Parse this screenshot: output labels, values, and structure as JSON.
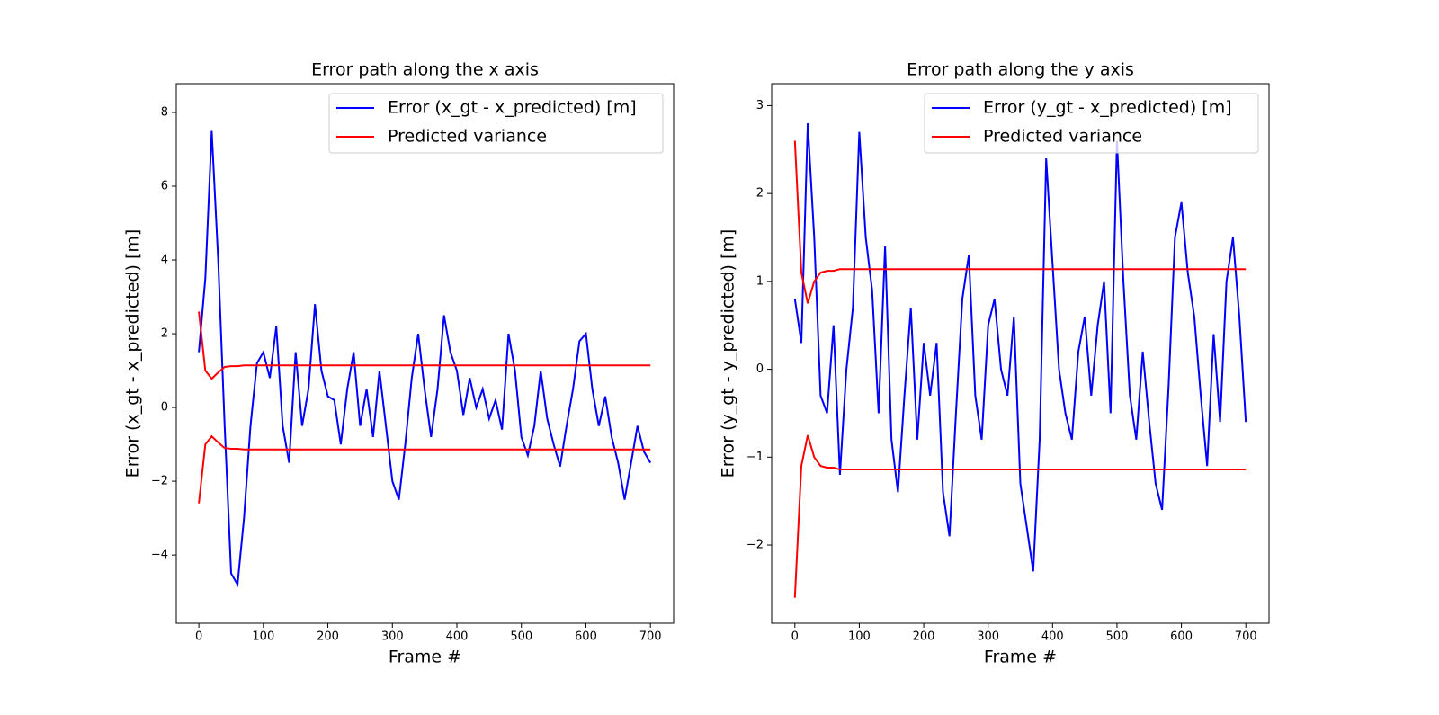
{
  "chart_data": [
    {
      "type": "line",
      "title": "Error path along the x axis",
      "x_label": "Frame #",
      "y_label": "Error (x_gt - x_predicted) [m]",
      "x": [
        0,
        10,
        20,
        30,
        40,
        50,
        60,
        70,
        80,
        90,
        100,
        110,
        120,
        130,
        140,
        150,
        160,
        170,
        180,
        190,
        200,
        210,
        220,
        230,
        240,
        250,
        260,
        270,
        280,
        290,
        300,
        310,
        320,
        330,
        340,
        350,
        360,
        370,
        380,
        390,
        400,
        410,
        420,
        430,
        440,
        450,
        460,
        470,
        480,
        490,
        500,
        510,
        520,
        530,
        540,
        550,
        560,
        570,
        580,
        590,
        600,
        610,
        620,
        630,
        640,
        650,
        660,
        670,
        680,
        690,
        700
      ],
      "series": [
        {
          "name": "Error (x_gt - x_predicted) [m]",
          "color": "#0000ff",
          "values": [
            1.5,
            3.5,
            7.5,
            4,
            -0.5,
            -4.5,
            -4.8,
            -3,
            -0.5,
            1.2,
            1.5,
            0.8,
            2.2,
            -0.5,
            -1.5,
            1.5,
            -0.5,
            0.5,
            2.8,
            1,
            0.3,
            0.2,
            -1,
            0.5,
            1.5,
            -0.5,
            0.5,
            -0.8,
            1,
            -0.5,
            -2,
            -2.5,
            -1,
            0.8,
            2,
            0.5,
            -0.8,
            0.5,
            2.5,
            1.5,
            1,
            -0.2,
            0.8,
            0,
            0.5,
            -0.3,
            0.2,
            -0.6,
            2,
            1,
            -0.8,
            -1.3,
            -0.5,
            1,
            -0.3,
            -1,
            -1.6,
            -0.5,
            0.5,
            1.8,
            2,
            0.5,
            -0.5,
            0.3,
            -0.8,
            -1.5,
            -2.5,
            -1.5,
            -0.5,
            -1.2,
            -1.5
          ]
        },
        {
          "name": "Predicted variance",
          "color": "#ff0000",
          "values": [
            2.6,
            1.0,
            0.78,
            0.95,
            1.1,
            1.12,
            1.12,
            1.14,
            1.14,
            1.14,
            1.14,
            1.14,
            1.14,
            1.14,
            1.14,
            1.14,
            1.14,
            1.14,
            1.14,
            1.14,
            1.14,
            1.14,
            1.14,
            1.14,
            1.14,
            1.14,
            1.14,
            1.14,
            1.14,
            1.14,
            1.14,
            1.14,
            1.14,
            1.14,
            1.14,
            1.14,
            1.14,
            1.14,
            1.14,
            1.14,
            1.14,
            1.14,
            1.14,
            1.14,
            1.14,
            1.14,
            1.14,
            1.14,
            1.14,
            1.14,
            1.14,
            1.14,
            1.14,
            1.14,
            1.14,
            1.14,
            1.14,
            1.14,
            1.14,
            1.14,
            1.14,
            1.14,
            1.14,
            1.14,
            1.14,
            1.14,
            1.14,
            1.14,
            1.14,
            1.14,
            1.14
          ],
          "lower": [
            -2.6,
            -1.0,
            -0.78,
            -0.95,
            -1.1,
            -1.12,
            -1.12,
            -1.14,
            -1.14,
            -1.14,
            -1.14,
            -1.14,
            -1.14,
            -1.14,
            -1.14,
            -1.14,
            -1.14,
            -1.14,
            -1.14,
            -1.14,
            -1.14,
            -1.14,
            -1.14,
            -1.14,
            -1.14,
            -1.14,
            -1.14,
            -1.14,
            -1.14,
            -1.14,
            -1.14,
            -1.14,
            -1.14,
            -1.14,
            -1.14,
            -1.14,
            -1.14,
            -1.14,
            -1.14,
            -1.14,
            -1.14,
            -1.14,
            -1.14,
            -1.14,
            -1.14,
            -1.14,
            -1.14,
            -1.14,
            -1.14,
            -1.14,
            -1.14,
            -1.14,
            -1.14,
            -1.14,
            -1.14,
            -1.14,
            -1.14,
            -1.14,
            -1.14,
            -1.14,
            -1.14,
            -1.14,
            -1.14,
            -1.14,
            -1.14,
            -1.14,
            -1.14,
            -1.14,
            -1.14,
            -1.14,
            -1.14
          ]
        }
      ],
      "xlim": [
        -35,
        736
      ],
      "xticks": [
        0,
        100,
        200,
        300,
        400,
        500,
        600,
        700
      ],
      "ylim": [
        -5.85,
        8.78
      ],
      "yticks": [
        {
          "value": -4,
          "label": "−4"
        },
        {
          "value": -2,
          "label": "−2"
        },
        0,
        2,
        4,
        6,
        8
      ],
      "legend": "upper right",
      "grid": false
    },
    {
      "type": "line",
      "title": "Error path along the y axis",
      "x_label": "Frame #",
      "y_label": "Error (y_gt - y_predicted) [m]",
      "x": [
        0,
        10,
        20,
        30,
        40,
        50,
        60,
        70,
        80,
        90,
        100,
        110,
        120,
        130,
        140,
        150,
        160,
        170,
        180,
        190,
        200,
        210,
        220,
        230,
        240,
        250,
        260,
        270,
        280,
        290,
        300,
        310,
        320,
        330,
        340,
        350,
        360,
        370,
        380,
        390,
        400,
        410,
        420,
        430,
        440,
        450,
        460,
        470,
        480,
        490,
        500,
        510,
        520,
        530,
        540,
        550,
        560,
        570,
        580,
        590,
        600,
        610,
        620,
        630,
        640,
        650,
        660,
        670,
        680,
        690,
        700
      ],
      "series": [
        {
          "name": "Error (y_gt - x_predicted) [m]",
          "color": "#0000ff",
          "values": [
            0.8,
            0.3,
            2.8,
            1.5,
            -0.3,
            -0.5,
            0.5,
            -1.2,
            0,
            0.7,
            2.7,
            1.5,
            0.9,
            -0.5,
            1.4,
            -0.8,
            -1.4,
            -0.3,
            0.7,
            -0.8,
            0.3,
            -0.3,
            0.3,
            -1.4,
            -1.9,
            -0.5,
            0.8,
            1.3,
            -0.3,
            -0.8,
            0.5,
            0.8,
            0,
            -0.3,
            0.6,
            -1.3,
            -1.8,
            -2.3,
            -0.8,
            2.4,
            1.2,
            0,
            -0.5,
            -0.8,
            0.2,
            0.6,
            -0.3,
            0.5,
            1,
            -0.5,
            2.6,
            1,
            -0.3,
            -0.8,
            0.2,
            -0.6,
            -1.3,
            -1.6,
            -0.2,
            1.5,
            1.9,
            1.1,
            0.6,
            -0.3,
            -1.1,
            0.4,
            -0.6,
            1,
            1.5,
            0.6,
            -0.6
          ]
        },
        {
          "name": "Predicted variance",
          "color": "#ff0000",
          "values": [
            2.6,
            1.1,
            0.75,
            1.0,
            1.1,
            1.12,
            1.12,
            1.14,
            1.14,
            1.14,
            1.14,
            1.14,
            1.14,
            1.14,
            1.14,
            1.14,
            1.14,
            1.14,
            1.14,
            1.14,
            1.14,
            1.14,
            1.14,
            1.14,
            1.14,
            1.14,
            1.14,
            1.14,
            1.14,
            1.14,
            1.14,
            1.14,
            1.14,
            1.14,
            1.14,
            1.14,
            1.14,
            1.14,
            1.14,
            1.14,
            1.14,
            1.14,
            1.14,
            1.14,
            1.14,
            1.14,
            1.14,
            1.14,
            1.14,
            1.14,
            1.14,
            1.14,
            1.14,
            1.14,
            1.14,
            1.14,
            1.14,
            1.14,
            1.14,
            1.14,
            1.14,
            1.14,
            1.14,
            1.14,
            1.14,
            1.14,
            1.14,
            1.14,
            1.14,
            1.14,
            1.14
          ],
          "lower": [
            -2.6,
            -1.1,
            -0.75,
            -1.0,
            -1.1,
            -1.12,
            -1.12,
            -1.14,
            -1.14,
            -1.14,
            -1.14,
            -1.14,
            -1.14,
            -1.14,
            -1.14,
            -1.14,
            -1.14,
            -1.14,
            -1.14,
            -1.14,
            -1.14,
            -1.14,
            -1.14,
            -1.14,
            -1.14,
            -1.14,
            -1.14,
            -1.14,
            -1.14,
            -1.14,
            -1.14,
            -1.14,
            -1.14,
            -1.14,
            -1.14,
            -1.14,
            -1.14,
            -1.14,
            -1.14,
            -1.14,
            -1.14,
            -1.14,
            -1.14,
            -1.14,
            -1.14,
            -1.14,
            -1.14,
            -1.14,
            -1.14,
            -1.14,
            -1.14,
            -1.14,
            -1.14,
            -1.14,
            -1.14,
            -1.14,
            -1.14,
            -1.14,
            -1.14,
            -1.14,
            -1.14,
            -1.14,
            -1.14,
            -1.14,
            -1.14,
            -1.14,
            -1.14,
            -1.14,
            -1.14,
            -1.14,
            -1.14
          ]
        }
      ],
      "xlim": [
        -36,
        736
      ],
      "xticks": [
        0,
        100,
        200,
        300,
        400,
        500,
        600,
        700
      ],
      "ylim": [
        -2.89,
        3.25
      ],
      "yticks": [
        {
          "value": -2,
          "label": "−2"
        },
        {
          "value": -1,
          "label": "−1"
        },
        0,
        1,
        2,
        3
      ],
      "legend": "upper right",
      "grid": false
    }
  ]
}
